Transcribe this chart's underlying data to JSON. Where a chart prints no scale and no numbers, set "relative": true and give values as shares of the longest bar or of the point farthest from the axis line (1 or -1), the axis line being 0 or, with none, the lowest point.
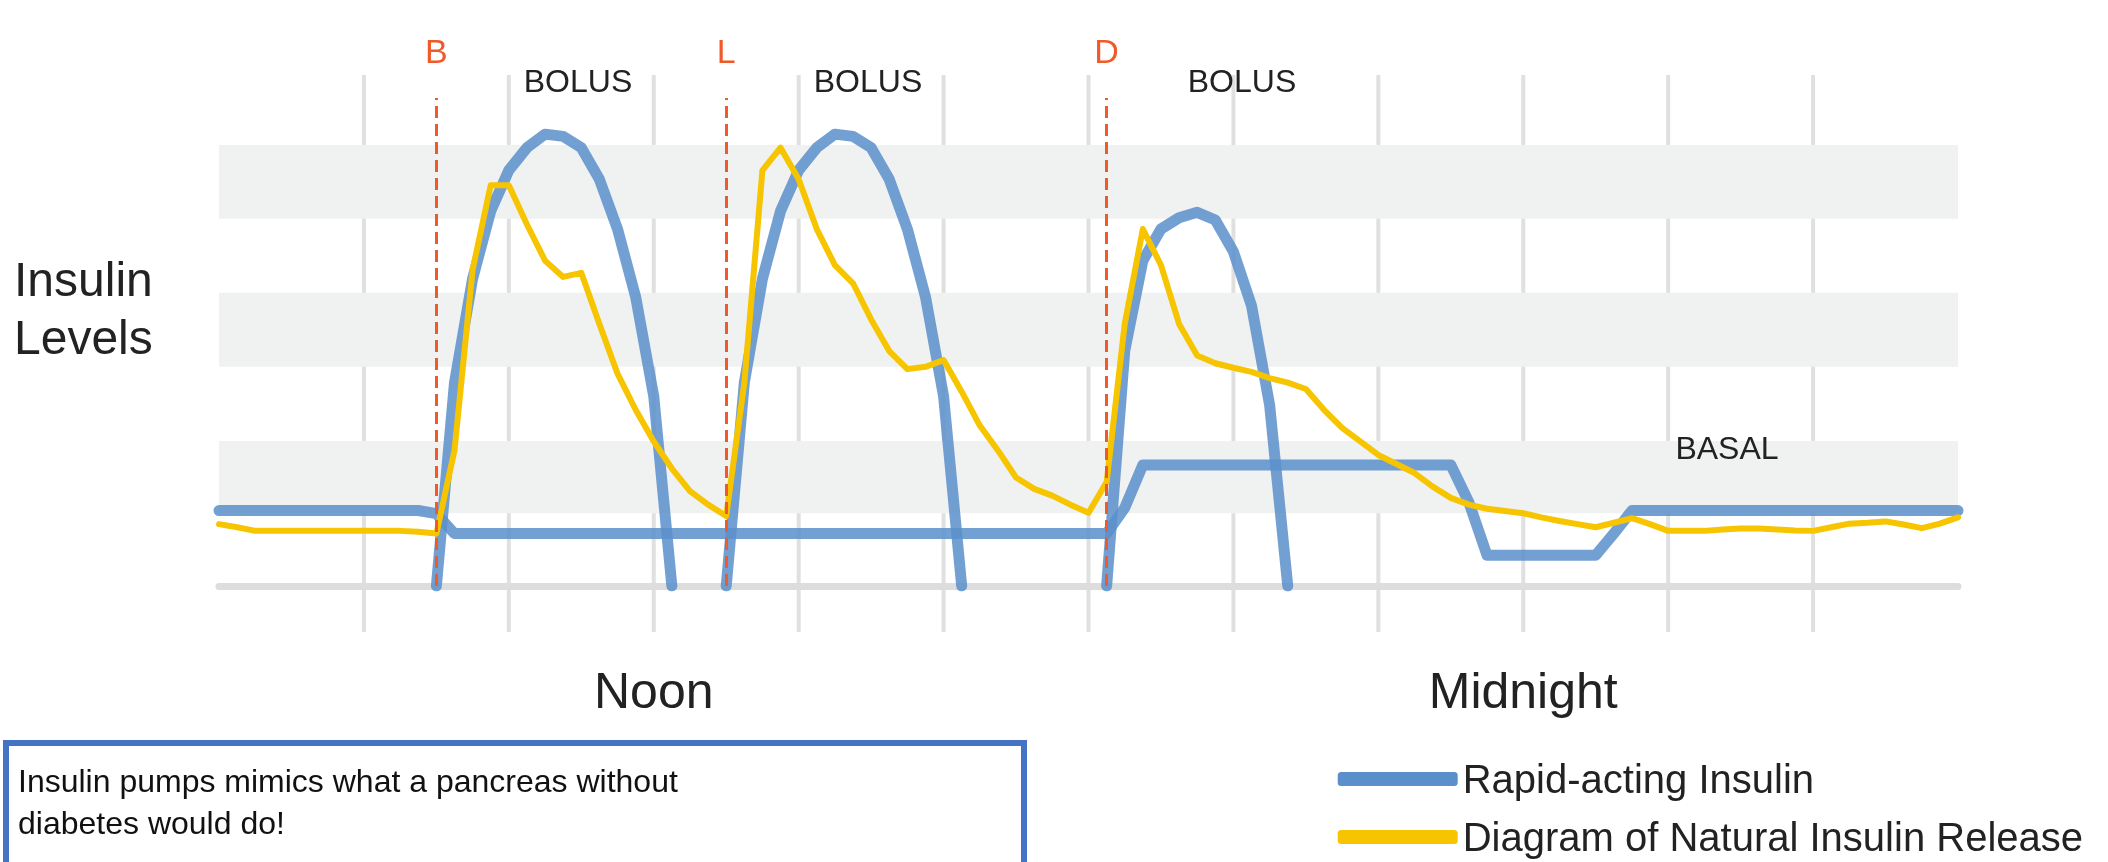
{
  "chart_data": {
    "type": "line",
    "relative": true,
    "ylabel": "Insulin Levels",
    "categories": [
      null,
      null,
      null,
      null,
      null,
      null,
      null,
      null,
      null,
      null,
      null,
      null,
      null,
      null,
      null,
      null,
      null,
      null,
      null,
      null,
      null,
      null,
      null,
      null,
      "Noon",
      null,
      null,
      null,
      null,
      null,
      null,
      null,
      null,
      null,
      null,
      null,
      null,
      null,
      null,
      null,
      null,
      null,
      null,
      null,
      null,
      null,
      null,
      null,
      null,
      null,
      null,
      null,
      null,
      null,
      null,
      null,
      null,
      null,
      null,
      null,
      null,
      null,
      null,
      null,
      null,
      null,
      null,
      null,
      null,
      null,
      null,
      null,
      "Midnight",
      null,
      null,
      null,
      null,
      null,
      null,
      null,
      null,
      null,
      null,
      null,
      null,
      null,
      null,
      null,
      null,
      null,
      null,
      null,
      null,
      null,
      null,
      null,
      null
    ],
    "grid": "x",
    "legend": "bottom right",
    "marker": "none",
    "line_style": "solid",
    "series": [
      {
        "name": "Rapid-acting Insulin",
        "color": "#5b8fcb",
        "values": [
          0.167,
          0.167,
          0.167,
          0.167,
          0.167,
          0.167,
          0.167,
          0.167,
          0.167,
          0.167,
          0.167,
          0.167,
          0.16,
          0.116,
          0.116,
          0.116,
          0.116,
          0.116,
          0.116,
          0.116,
          0.116,
          0.116,
          0.116,
          0.116,
          0.116,
          0.116,
          0.116,
          0.116,
          0.116,
          0.116,
          0.116,
          0.116,
          0.116,
          0.116,
          0.116,
          0.116,
          0.116,
          0.116,
          0.116,
          0.116,
          0.116,
          0.116,
          0.116,
          0.116,
          0.116,
          0.116,
          0.116,
          0.116,
          0.116,
          0.116,
          0.173,
          0.268,
          0.268,
          0.268,
          0.268,
          0.268,
          0.268,
          0.268,
          0.268,
          0.268,
          0.268,
          0.268,
          0.268,
          0.268,
          0.268,
          0.268,
          0.268,
          0.268,
          0.268,
          0.185,
          0.068,
          0.068,
          0.068,
          0.068,
          0.068,
          0.068,
          0.068,
          0.116,
          0.167,
          0.167,
          0.167,
          0.167,
          0.167,
          0.167,
          0.167,
          0.167,
          0.167,
          0.167,
          0.167,
          0.167,
          0.167,
          0.167,
          0.167,
          0.167,
          0.167,
          0.167,
          0.167
        ]
      },
      {
        "color": "#5b8fcb",
        "values": [
          null,
          null,
          null,
          null,
          null,
          null,
          null,
          null,
          null,
          null,
          null,
          null,
          0,
          0.45,
          0.68,
          0.83,
          0.92,
          0.97,
          1,
          0.995,
          0.97,
          0.9,
          0.79,
          0.64,
          0.42,
          0,
          null,
          null,
          null,
          null,
          null,
          null,
          null,
          null,
          null,
          null,
          null,
          null,
          null,
          null,
          null,
          null,
          null,
          null,
          null,
          null,
          null,
          null,
          null,
          null,
          null,
          null,
          null,
          null,
          null,
          null,
          null,
          null,
          null,
          null,
          null,
          null,
          null,
          null,
          null,
          null,
          null,
          null,
          null,
          null,
          null,
          null,
          null,
          null,
          null,
          null,
          null,
          null,
          null,
          null,
          null,
          null,
          null,
          null,
          null,
          null,
          null,
          null,
          null,
          null,
          null,
          null,
          null,
          null,
          null,
          null,
          null
        ]
      },
      {
        "color": "#5b8fcb",
        "values": [
          null,
          null,
          null,
          null,
          null,
          null,
          null,
          null,
          null,
          null,
          null,
          null,
          null,
          null,
          null,
          null,
          null,
          null,
          null,
          null,
          null,
          null,
          null,
          null,
          null,
          null,
          null,
          null,
          0,
          0.45,
          0.68,
          0.83,
          0.92,
          0.97,
          1,
          0.995,
          0.97,
          0.9,
          0.79,
          0.64,
          0.42,
          0,
          null,
          null,
          null,
          null,
          null,
          null,
          null,
          null,
          null,
          null,
          null,
          null,
          null,
          null,
          null,
          null,
          null,
          null,
          null,
          null,
          null,
          null,
          null,
          null,
          null,
          null,
          null,
          null,
          null,
          null,
          null,
          null,
          null,
          null,
          null,
          null,
          null,
          null,
          null,
          null,
          null,
          null,
          null,
          null,
          null,
          null,
          null,
          null,
          null,
          null,
          null,
          null,
          null,
          null,
          null
        ]
      },
      {
        "color": "#5b8fcb",
        "values": [
          null,
          null,
          null,
          null,
          null,
          null,
          null,
          null,
          null,
          null,
          null,
          null,
          null,
          null,
          null,
          null,
          null,
          null,
          null,
          null,
          null,
          null,
          null,
          null,
          null,
          null,
          null,
          null,
          null,
          null,
          null,
          null,
          null,
          null,
          null,
          null,
          null,
          null,
          null,
          null,
          null,
          null,
          null,
          null,
          null,
          null,
          null,
          null,
          null,
          0,
          0.52,
          0.72,
          0.79,
          0.815,
          0.827,
          0.81,
          0.74,
          0.62,
          0.4,
          0,
          null,
          null,
          null,
          null,
          null,
          null,
          null,
          null,
          null,
          null,
          null,
          null,
          null,
          null,
          null,
          null,
          null,
          null,
          null,
          null,
          null,
          null,
          null,
          null,
          null,
          null,
          null,
          null,
          null,
          null,
          null,
          null,
          null,
          null,
          null,
          null,
          null
        ]
      },
      {
        "name": "Diagram of Natural Insulin Release",
        "color": "#f6c500",
        "values": [
          0.137,
          0.13,
          0.122,
          0.122,
          0.122,
          0.122,
          0.122,
          0.122,
          0.122,
          0.122,
          0.122,
          0.12,
          0.116,
          0.3,
          0.7,
          0.887,
          0.887,
          0.8,
          0.72,
          0.684,
          0.693,
          0.58,
          0.47,
          0.39,
          0.32,
          0.26,
          0.21,
          0.18,
          0.155,
          0.45,
          0.92,
          0.97,
          0.9,
          0.79,
          0.71,
          0.67,
          0.59,
          0.52,
          0.48,
          0.485,
          0.5,
          0.43,
          0.355,
          0.3,
          0.24,
          0.215,
          0.2,
          0.18,
          0.162,
          0.23,
          0.58,
          0.79,
          0.71,
          0.58,
          0.51,
          0.493,
          0.483,
          0.474,
          0.46,
          0.45,
          0.436,
          0.39,
          0.35,
          0.32,
          0.29,
          0.27,
          0.25,
          0.22,
          0.195,
          0.18,
          0.171,
          0.166,
          0.161,
          0.152,
          0.144,
          0.137,
          0.13,
          0.14,
          0.15,
          0.137,
          0.122,
          0.122,
          0.122,
          0.125,
          0.127,
          0.127,
          0.125,
          0.123,
          0.122,
          0.13,
          0.138,
          0.14,
          0.143,
          0.136,
          0.128,
          0.138,
          0.152
        ]
      }
    ],
    "bands": [
      {
        "axis": "y",
        "from": 0.161,
        "to": 0.321,
        "color": "#f0f1f1"
      },
      {
        "axis": "y",
        "from": 0.485,
        "to": 0.649,
        "color": "#f0f1f1"
      },
      {
        "axis": "y",
        "from": 0.813,
        "to": 0.976,
        "color": "#f0f1f1"
      }
    ],
    "annotations": [
      "B",
      "L",
      "D",
      "BOLUS",
      "BOLUS",
      "BOLUS",
      "BASAL",
      "Insulin pumps mimics what a pancreas without diabetes would do!"
    ]
  }
}
